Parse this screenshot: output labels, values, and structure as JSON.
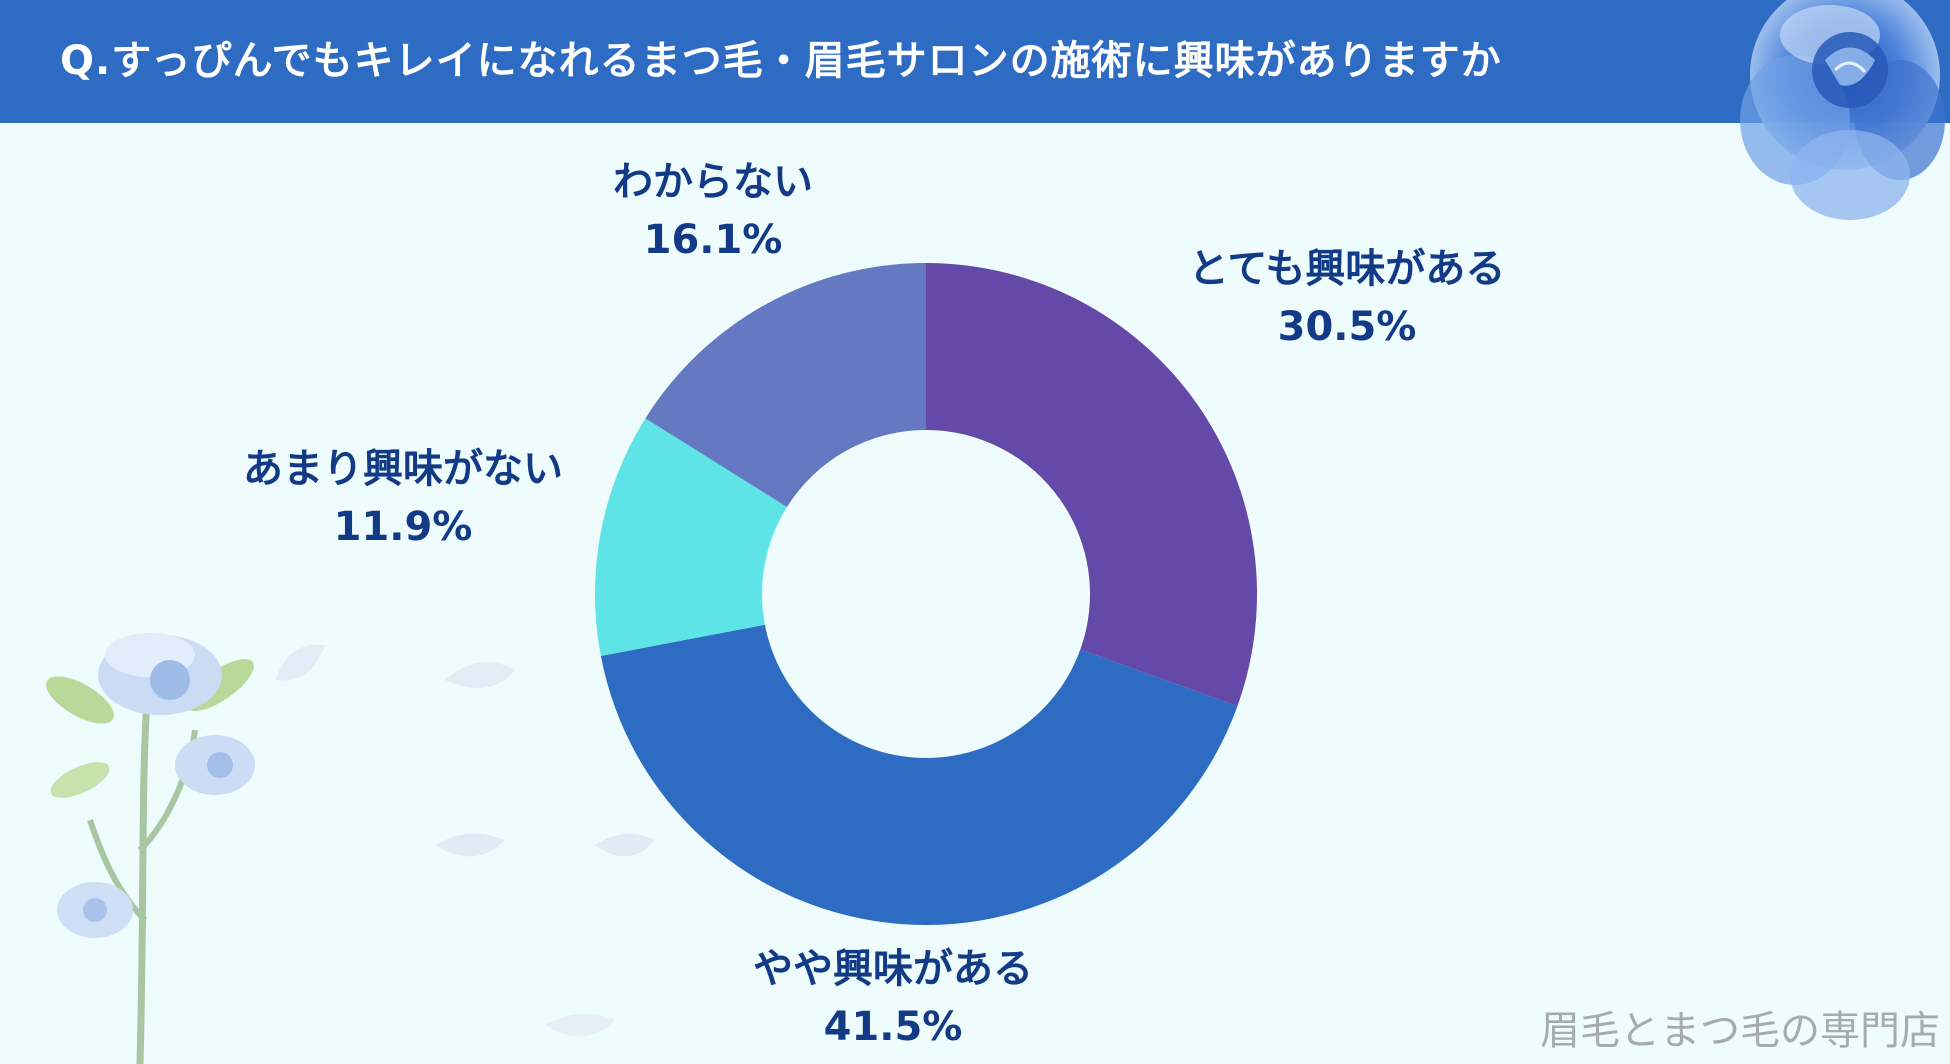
{
  "header": {
    "title": "Q.すっぴんでもキレイになれるまつ毛・眉毛サロンの施術に興味がありますか"
  },
  "watermark": "眉毛とまつ毛の専門店",
  "colors": {
    "header_bg": "#2e6bc2",
    "page_bg": "#eefcfd",
    "label_text": "#123a86"
  },
  "chart_data": {
    "type": "pie",
    "style": "donut",
    "title": "",
    "legend": "none (labels placed beside slices)",
    "slices": [
      {
        "label": "とても興味がある",
        "value": 30.5,
        "display": "30.5%",
        "color": "#6449a8"
      },
      {
        "label": "やや興味がある",
        "value": 41.5,
        "display": "41.5%",
        "color": "#2e6bc2"
      },
      {
        "label": "あまり興味がない",
        "value": 11.9,
        "display": "11.9%",
        "color": "#5ee3e6"
      },
      {
        "label": "わからない",
        "value": 16.1,
        "display": "16.1%",
        "color": "#6579c2"
      }
    ]
  },
  "decorations": {
    "top_right": "blue-rose-icon",
    "bottom_left": "blue-rose-stem-icon",
    "petals": "petal-icon"
  }
}
